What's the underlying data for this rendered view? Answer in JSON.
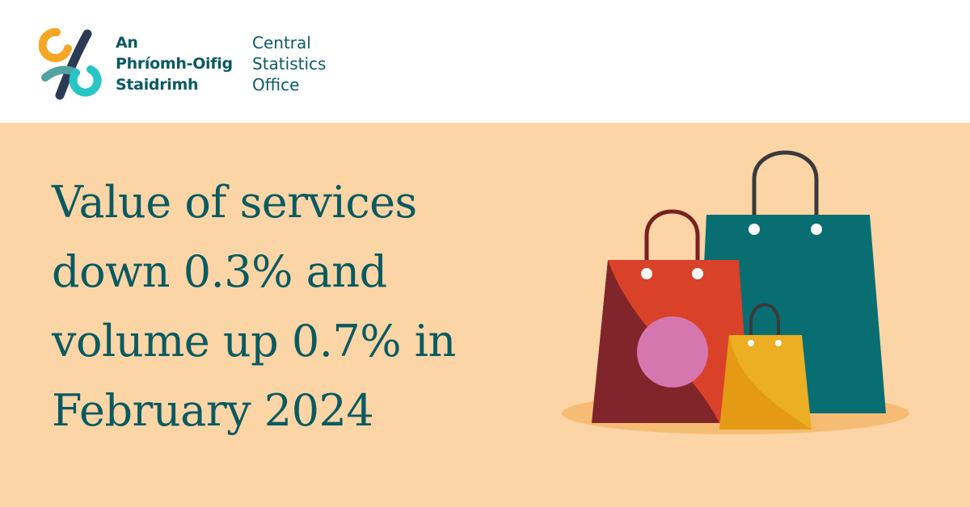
{
  "header": {
    "org_name_irish": [
      "An",
      "Phríomh-Oifig",
      "Staidrimh"
    ],
    "org_name_english": [
      "Central",
      "Statistics",
      "Office"
    ]
  },
  "banner": {
    "headline_lines": [
      "Value of services",
      "down 0.3% and",
      "volume up 0.7% in",
      "February 2024"
    ]
  },
  "colors": {
    "banner_bg": "#fbd5a6",
    "text_teal": "#0b5a61",
    "bag_teal": "#086e72",
    "bag_red": "#da4129",
    "bag_dark_red": "#80262a",
    "bag_yellow": "#ecae22",
    "dot_pink": "#d676ae",
    "logo_orange": "#f5a623",
    "logo_navy": "#2b3a55",
    "logo_cyan": "#27c5c5"
  },
  "icons": [
    "cso-logo-mark",
    "shopping-bags-illustration"
  ]
}
